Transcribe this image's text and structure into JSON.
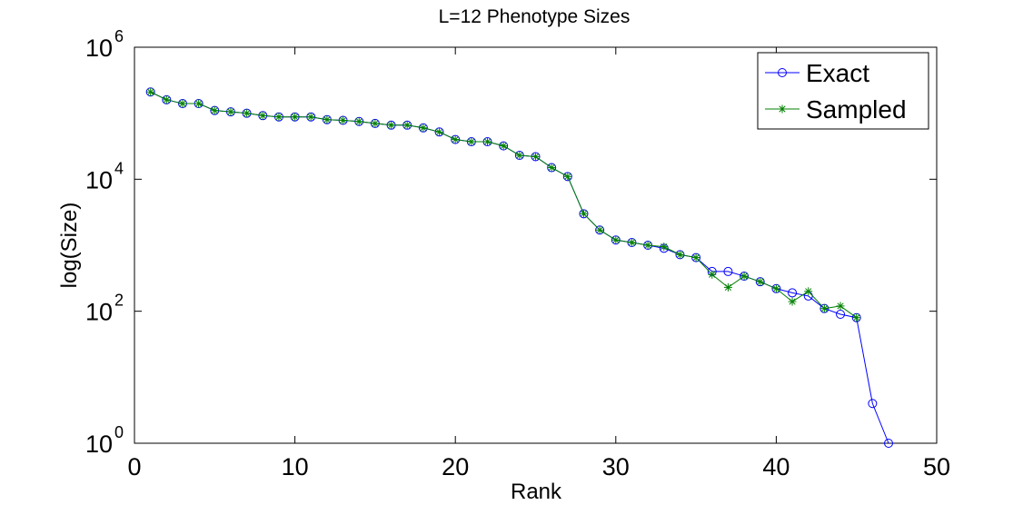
{
  "chart_data": {
    "type": "line",
    "title": "L=12 Phenotype Sizes",
    "xlabel": "Rank",
    "ylabel": "log(Size)",
    "xlim": [
      0,
      50
    ],
    "ylim": [
      1,
      1000000
    ],
    "yscale": "log",
    "x_ticks": [
      "0",
      "10",
      "20",
      "30",
      "40",
      "50"
    ],
    "y_ticks": [
      {
        "base": "10",
        "exp": "0"
      },
      {
        "base": "10",
        "exp": "2"
      },
      {
        "base": "10",
        "exp": "4"
      },
      {
        "base": "10",
        "exp": "6"
      }
    ],
    "grid": false,
    "legend_position": "top-right",
    "series": [
      {
        "name": "Exact",
        "color": "#0000ff",
        "marker": "circle",
        "x": [
          1,
          2,
          3,
          4,
          5,
          6,
          7,
          8,
          9,
          10,
          11,
          12,
          13,
          14,
          15,
          16,
          17,
          18,
          19,
          20,
          21,
          22,
          23,
          24,
          25,
          26,
          27,
          28,
          29,
          30,
          31,
          32,
          33,
          34,
          35,
          36,
          37,
          38,
          39,
          40,
          41,
          42,
          43,
          44,
          45,
          46,
          47
        ],
        "y": [
          210000,
          160000,
          140000,
          140000,
          110000,
          105000,
          100000,
          92000,
          88000,
          88000,
          88000,
          80000,
          78000,
          75000,
          70000,
          66000,
          66000,
          60000,
          52000,
          40000,
          37000,
          37000,
          32000,
          23000,
          22000,
          15000,
          11000,
          3000,
          1700,
          1200,
          1100,
          1000,
          900,
          720,
          650,
          400,
          400,
          340,
          280,
          220,
          190,
          170,
          110,
          90,
          80,
          4,
          1
        ]
      },
      {
        "name": "Sampled",
        "color": "#008000",
        "marker": "star",
        "x": [
          1,
          2,
          3,
          4,
          5,
          6,
          7,
          8,
          9,
          10,
          11,
          12,
          13,
          14,
          15,
          16,
          17,
          18,
          19,
          20,
          21,
          22,
          23,
          24,
          25,
          26,
          27,
          28,
          29,
          30,
          31,
          32,
          33,
          34,
          35,
          36,
          37,
          38,
          39,
          40,
          41,
          42,
          43,
          44,
          45
        ],
        "y": [
          210000,
          160000,
          140000,
          140000,
          110000,
          105000,
          100000,
          92000,
          88000,
          88000,
          88000,
          80000,
          78000,
          75000,
          70000,
          66000,
          66000,
          60000,
          52000,
          40000,
          37000,
          37000,
          32000,
          23000,
          22000,
          15000,
          11000,
          3000,
          1700,
          1200,
          1100,
          1000,
          950,
          720,
          650,
          360,
          230,
          340,
          280,
          220,
          140,
          200,
          110,
          120,
          80
        ]
      }
    ]
  }
}
